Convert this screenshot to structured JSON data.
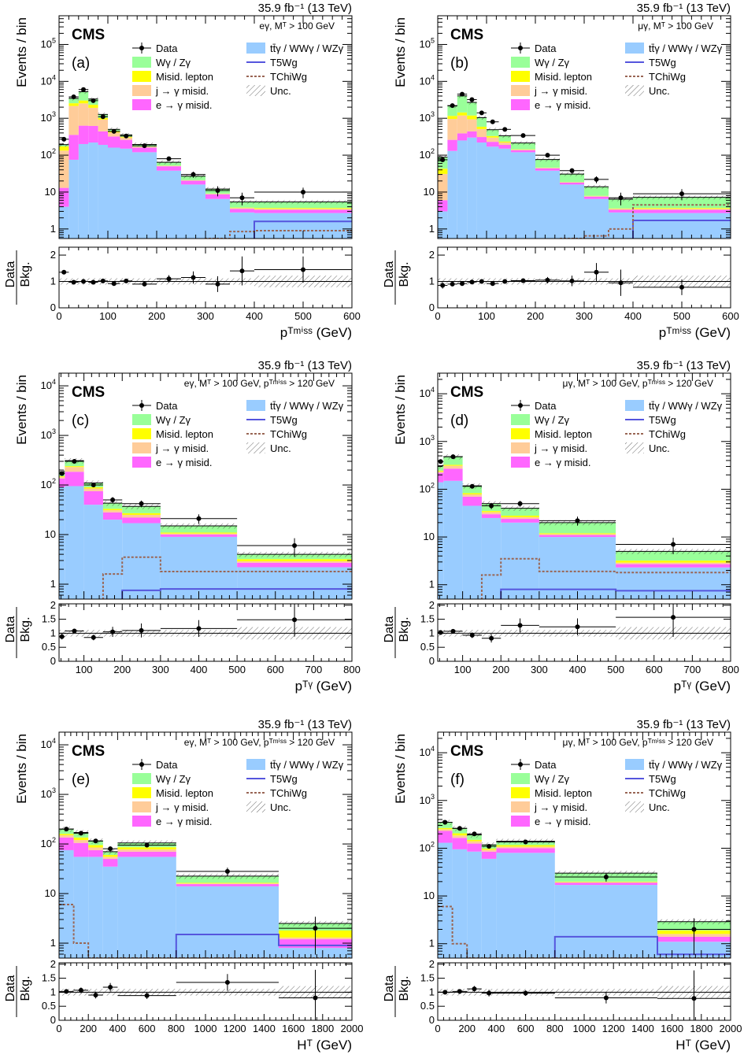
{
  "legend_text": {
    "data": "Data",
    "wg": "Wγ / Zγ",
    "misid": "Misid. lepton",
    "jg": "j → γ misid.",
    "eg": "e → γ misid.",
    "ttg": "tt̄γ / WWγ / WZγ",
    "t5": "T5Wg",
    "tchi": "TChiWg",
    "unc": "Unc."
  },
  "common": {
    "lumi": "35.9 fb⁻¹ (13 TeV)",
    "cms": "CMS",
    "ylabel": "Events / bin",
    "ratio_top": "Data",
    "ratio_bottom": "Bkg."
  },
  "colors": {
    "ttg": "#99ccff",
    "eg": "#ff66ff",
    "jg": "#ffcc99",
    "misid": "#ffff00",
    "wg": "#99ff99",
    "t5": "#5555dd",
    "tchi": "#996655"
  },
  "chart_data": [
    {
      "type": "bar",
      "panel": "(a)",
      "selection": "eγ, Mᵀ > 100 GeV",
      "xlabel": "pᵀᵐⁱˢˢ (GeV)",
      "edges": [
        0,
        20,
        40,
        60,
        80,
        100,
        125,
        150,
        200,
        250,
        300,
        350,
        400,
        600
      ],
      "xlim": [
        0,
        600
      ],
      "ylim": [
        0.55,
        600000
      ],
      "log": true,
      "xticks": [
        0,
        100,
        200,
        300,
        400,
        500,
        600
      ],
      "ratio_ylim": [
        0,
        2.3
      ],
      "ratio_ticks": [
        0,
        1,
        2
      ],
      "stack": {
        "ttg": [
          4,
          75,
          200,
          220,
          190,
          160,
          150,
          120,
          38,
          16,
          6.5,
          2.8,
          2.7
        ],
        "eg": [
          9,
          280,
          430,
          400,
          250,
          160,
          110,
          40,
          12,
          4.3,
          2.2,
          0.7,
          0.6
        ],
        "jg": [
          120,
          1800,
          1900,
          1300,
          480,
          90,
          40,
          8,
          1.5,
          0.5,
          0.3,
          0.2,
          0.2
        ],
        "misid": [
          40,
          400,
          500,
          400,
          100,
          30,
          15,
          2,
          0.5,
          0.2,
          0.1,
          0.1,
          0.2
        ],
        "wg": [
          20,
          900,
          2200,
          1000,
          250,
          60,
          40,
          25,
          12,
          6,
          3,
          1.6,
          1.7
        ]
      },
      "unc": 0.12,
      "t5": [
        0,
        0,
        0,
        0,
        0,
        0,
        0,
        0,
        0,
        0,
        0,
        0,
        1.6
      ],
      "tchi": [
        0,
        0,
        0,
        0,
        0,
        0,
        0,
        0,
        0,
        0,
        0.55,
        0.85,
        0.9
      ],
      "data": [
        270,
        3800,
        6000,
        3000,
        1100,
        440,
        330,
        180,
        80,
        30,
        11,
        7,
        10
      ],
      "ratio": [
        1.35,
        0.97,
        1.0,
        0.97,
        1.02,
        0.92,
        1.02,
        0.9,
        1.1,
        1.15,
        0.9,
        1.4,
        1.45
      ],
      "ratio_err": [
        0.08,
        0.03,
        0.02,
        0.03,
        0.04,
        0.06,
        0.07,
        0.08,
        0.14,
        0.23,
        0.3,
        0.55,
        0.5
      ]
    },
    {
      "type": "bar",
      "panel": "(b)",
      "selection": "μγ, Mᵀ > 100 GeV",
      "xlabel": "pᵀᵐⁱˢˢ (GeV)",
      "edges": [
        0,
        20,
        40,
        60,
        80,
        100,
        125,
        150,
        200,
        250,
        300,
        350,
        400,
        600
      ],
      "xlim": [
        0,
        600
      ],
      "ylim": [
        0.55,
        600000
      ],
      "log": true,
      "xticks": [
        0,
        100,
        200,
        300,
        400,
        500,
        600
      ],
      "ratio_ylim": [
        0,
        2.3
      ],
      "ratio_ticks": [
        0,
        1,
        2
      ],
      "stack": {
        "ttg": [
          3,
          130,
          250,
          300,
          220,
          170,
          150,
          120,
          38,
          16,
          6.5,
          2.8,
          2.7
        ],
        "eg": [
          3,
          130,
          140,
          140,
          90,
          60,
          40,
          15,
          6,
          2,
          1,
          0.5,
          0.6
        ],
        "jg": [
          25,
          700,
          800,
          500,
          200,
          70,
          30,
          7,
          1.5,
          0.5,
          0.3,
          0.2,
          0.2
        ],
        "misid": [
          12,
          200,
          250,
          250,
          80,
          30,
          15,
          2,
          0.5,
          0.2,
          0.1,
          0.1,
          0.2
        ],
        "wg": [
          45,
          1000,
          2600,
          1500,
          450,
          160,
          100,
          70,
          30,
          12,
          6,
          2.8,
          3.5
        ]
      },
      "unc": 0.12,
      "t5": [
        0,
        0,
        0,
        0,
        0,
        0,
        0,
        0,
        0,
        0,
        0,
        0,
        1.7
      ],
      "tchi": [
        0,
        0,
        0,
        0,
        0,
        0,
        0,
        0,
        0,
        0.55,
        0.65,
        1.0,
        4.5
      ],
      "data": [
        75,
        2200,
        4500,
        3200,
        1400,
        800,
        500,
        340,
        100,
        38,
        22,
        7,
        9
      ],
      "ratio": [
        0.85,
        0.9,
        0.92,
        0.98,
        1.0,
        0.92,
        1.0,
        1.03,
        1.05,
        1.02,
        1.35,
        0.95,
        0.78
      ],
      "ratio_err": [
        0.12,
        0.03,
        0.02,
        0.03,
        0.04,
        0.05,
        0.06,
        0.07,
        0.12,
        0.2,
        0.35,
        0.5,
        0.3
      ]
    },
    {
      "type": "bar",
      "panel": "(c)",
      "selection": "eγ, Mᵀ > 100 GeV, pᵀᵐⁱˢˢ > 120 GeV",
      "xlabel": "pᵀᵞ (GeV)",
      "edges": [
        35,
        50,
        100,
        150,
        200,
        300,
        500,
        800
      ],
      "xlim": [
        35,
        800
      ],
      "ylim": [
        0.5,
        18000
      ],
      "log": true,
      "xticks": [
        100,
        200,
        300,
        400,
        500,
        600,
        700,
        800
      ],
      "ratio_ylim": [
        0,
        2.05
      ],
      "ratio_ticks": [
        0,
        0.5,
        1,
        1.5,
        2
      ],
      "stack": {
        "ttg": [
          90,
          95,
          40,
          20,
          17,
          9,
          2.2
        ],
        "eg": [
          45,
          90,
          35,
          8,
          5,
          1,
          0.5
        ],
        "jg": [
          10,
          45,
          10,
          3,
          3,
          0.5,
          0.2
        ],
        "misid": [
          5,
          10,
          5,
          2,
          2,
          0.5,
          0.3
        ],
        "wg": [
          35,
          70,
          20,
          10,
          10,
          4,
          0.8
        ]
      },
      "unc": 0.12,
      "t5": [
        0,
        0,
        0,
        0,
        0.75,
        0.8,
        0.8
      ],
      "tchi": [
        0,
        0,
        0,
        1.6,
        3.5,
        1.8,
        1.8
      ],
      "data": [
        170,
        300,
        100,
        50,
        42,
        21,
        6
      ],
      "ratio": [
        0.88,
        1.08,
        0.85,
        1.05,
        1.1,
        1.17,
        1.48
      ],
      "ratio_err": [
        0.1,
        0.07,
        0.1,
        0.18,
        0.25,
        0.3,
        0.6
      ]
    },
    {
      "type": "bar",
      "panel": "(d)",
      "selection": "μγ, Mᵀ > 100 GeV, pᵀᵐⁱˢˢ > 120 GeV",
      "xlabel": "pᵀᵞ (GeV)",
      "edges": [
        35,
        50,
        100,
        150,
        200,
        300,
        500,
        800
      ],
      "xlim": [
        35,
        800
      ],
      "ylim": [
        0.5,
        27000
      ],
      "log": true,
      "xticks": [
        100,
        200,
        300,
        400,
        500,
        600,
        700,
        800
      ],
      "ratio_ylim": [
        0,
        2.05
      ],
      "ratio_ticks": [
        0,
        0.5,
        1,
        1.5,
        2
      ],
      "stack": {
        "ttg": [
          140,
          150,
          45,
          25,
          20,
          10,
          2.3
        ],
        "eg": [
          80,
          120,
          25,
          5,
          4,
          1,
          0.4
        ],
        "jg": [
          15,
          40,
          8,
          3,
          2,
          0.5,
          0.2
        ],
        "misid": [
          10,
          15,
          5,
          2,
          2,
          0.5,
          0.3
        ],
        "wg": [
          65,
          155,
          35,
          15,
          12,
          8,
          1.8
        ]
      },
      "unc": 0.12,
      "t5": [
        0,
        0,
        0,
        0,
        0.8,
        0.8,
        0.75
      ],
      "tchi": [
        0,
        0,
        0,
        1.6,
        3.5,
        1.9,
        1.8
      ],
      "data": [
        380,
        480,
        115,
        45,
        50,
        22,
        7
      ],
      "ratio": [
        1.03,
        1.07,
        0.93,
        0.82,
        1.28,
        1.23,
        1.57
      ],
      "ratio_err": [
        0.08,
        0.06,
        0.1,
        0.15,
        0.25,
        0.3,
        0.7
      ]
    },
    {
      "type": "bar",
      "panel": "(e)",
      "selection": "eγ, Mᵀ > 100 GeV, pᵀᵐⁱˢˢ > 120 GeV",
      "xlabel": "Hᵀ (GeV)",
      "edges": [
        0,
        100,
        200,
        300,
        400,
        800,
        1500,
        2000
      ],
      "xlim": [
        0,
        2000
      ],
      "ylim": [
        0.5,
        18000
      ],
      "log": true,
      "xticks": [
        0,
        200,
        400,
        600,
        800,
        1000,
        1200,
        1400,
        1600,
        1800,
        2000
      ],
      "ratio_ylim": [
        0,
        2.05
      ],
      "ratio_ticks": [
        0,
        0.5,
        1,
        1.5,
        2
      ],
      "stack": {
        "ttg": [
          75,
          55,
          55,
          35,
          55,
          14,
          0.8
        ],
        "eg": [
          60,
          50,
          20,
          15,
          15,
          1.5,
          0.4
        ],
        "jg": [
          15,
          15,
          10,
          5,
          8,
          0.5,
          0.1
        ],
        "misid": [
          10,
          15,
          10,
          5,
          8,
          0.5,
          0.5
        ],
        "wg": [
          40,
          35,
          20,
          10,
          19,
          6,
          0.7
        ]
      },
      "unc": 0.12,
      "t5": [
        0,
        0,
        0,
        0,
        0,
        1.5,
        0.9
      ],
      "tchi": [
        6,
        1,
        0.45,
        0.45,
        0.45,
        0.45,
        0.45
      ],
      "data": [
        200,
        165,
        115,
        80,
        95,
        28,
        2
      ],
      "ratio": [
        1.03,
        1.07,
        0.9,
        1.18,
        0.88,
        1.35,
        0.8
      ],
      "ratio_err": [
        0.08,
        0.1,
        0.12,
        0.15,
        0.12,
        0.3,
        1.0
      ]
    },
    {
      "type": "bar",
      "panel": "(f)",
      "selection": "μγ, Mᵀ > 100 GeV, pᵀᵐⁱˢˢ > 120 GeV",
      "xlabel": "Hᵀ (GeV)",
      "edges": [
        0,
        100,
        200,
        300,
        400,
        800,
        1500,
        2000
      ],
      "xlim": [
        0,
        2000
      ],
      "ylim": [
        0.5,
        27000
      ],
      "log": true,
      "xticks": [
        0,
        200,
        400,
        600,
        800,
        1000,
        1200,
        1400,
        1600,
        1800,
        2000
      ],
      "ratio_ylim": [
        0,
        2.05
      ],
      "ratio_ticks": [
        0,
        0.5,
        1,
        1.5,
        2
      ],
      "stack": {
        "ttg": [
          130,
          95,
          85,
          60,
          80,
          17,
          1.1
        ],
        "eg": [
          100,
          70,
          40,
          25,
          20,
          2,
          0.3
        ],
        "jg": [
          20,
          20,
          15,
          8,
          8,
          0.5,
          0.2
        ],
        "misid": [
          15,
          20,
          10,
          5,
          8,
          0.5,
          0.3
        ],
        "wg": [
          85,
          55,
          40,
          20,
          24,
          10,
          1.0
        ]
      },
      "unc": 0.12,
      "t5": [
        0,
        0,
        0,
        0,
        0,
        1.4,
        0.6
      ],
      "tchi": [
        6,
        1,
        0.45,
        0.45,
        0.45,
        0.45,
        0.45
      ],
      "data": [
        350,
        260,
        200,
        110,
        135,
        25,
        2
      ],
      "ratio": [
        1.0,
        1.03,
        1.12,
        0.97,
        0.97,
        0.8,
        0.78
      ],
      "ratio_err": [
        0.06,
        0.08,
        0.1,
        0.12,
        0.1,
        0.2,
        1.0
      ]
    }
  ]
}
